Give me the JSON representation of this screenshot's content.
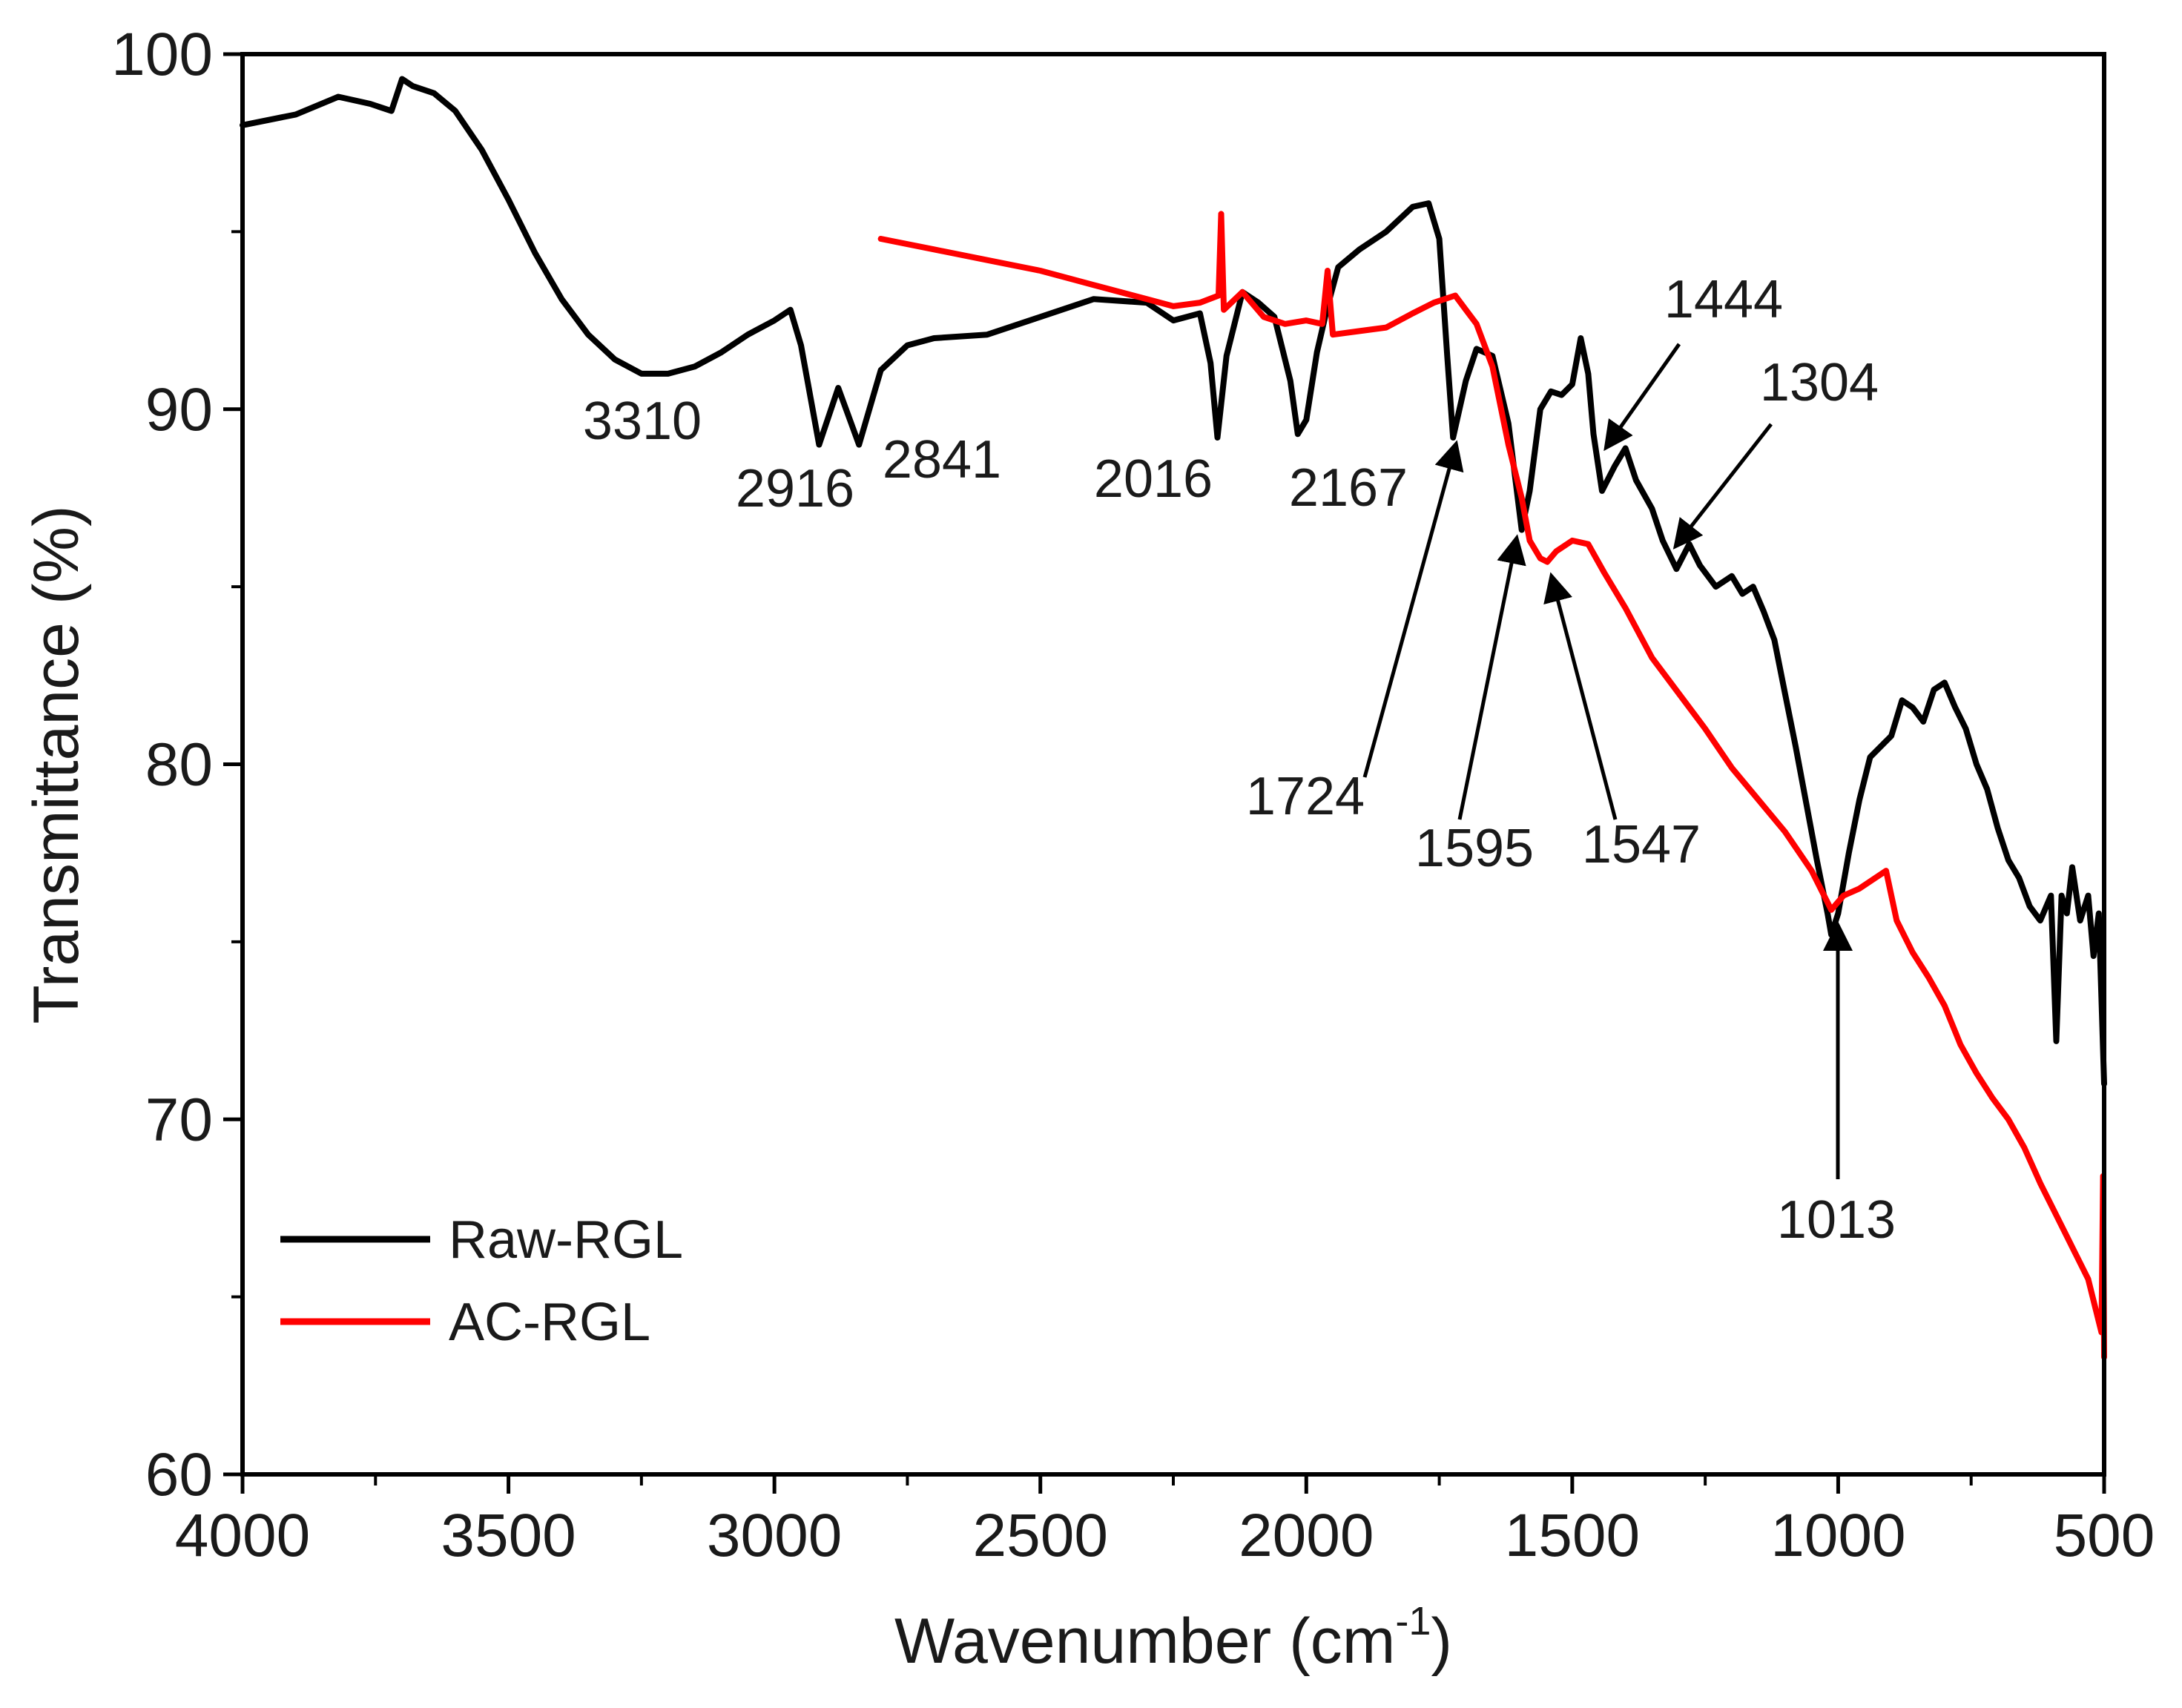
{
  "chart_data": {
    "type": "line",
    "title": "",
    "xlabel": "Wavenumber (cm",
    "xlabel_sup": "-1",
    "xlabel_close": ")",
    "ylabel": "Transmittance (%)",
    "xlim": [
      4000,
      500
    ],
    "ylim": [
      60,
      100
    ],
    "x_ticks": [
      4000,
      3500,
      3000,
      2500,
      2000,
      1500,
      1000,
      500
    ],
    "y_ticks": [
      60,
      70,
      80,
      90,
      100
    ],
    "x_tick_labels": [
      "4000",
      "3500",
      "3000",
      "2500",
      "2000",
      "1500",
      "1000",
      "500"
    ],
    "y_tick_labels": [
      "60",
      "70",
      "80",
      "90",
      "100"
    ],
    "legend_position": "bottom-left",
    "series": [
      {
        "name": "Raw-RGL",
        "color": "#000000",
        "points": [
          [
            4000,
            98.0
          ],
          [
            3900,
            98.3
          ],
          [
            3820,
            98.8
          ],
          [
            3760,
            98.6
          ],
          [
            3720,
            98.4
          ],
          [
            3700,
            99.3
          ],
          [
            3680,
            99.1
          ],
          [
            3640,
            98.9
          ],
          [
            3600,
            98.4
          ],
          [
            3550,
            97.3
          ],
          [
            3500,
            95.9
          ],
          [
            3450,
            94.4
          ],
          [
            3400,
            93.1
          ],
          [
            3350,
            92.1
          ],
          [
            3300,
            91.4
          ],
          [
            3250,
            91.0
          ],
          [
            3200,
            91.0
          ],
          [
            3150,
            91.2
          ],
          [
            3100,
            91.6
          ],
          [
            3050,
            92.1
          ],
          [
            3000,
            92.5
          ],
          [
            2970,
            92.8
          ],
          [
            2950,
            91.8
          ],
          [
            2916,
            89.0
          ],
          [
            2880,
            90.6
          ],
          [
            2841,
            89.0
          ],
          [
            2800,
            91.1
          ],
          [
            2750,
            91.8
          ],
          [
            2700,
            92.0
          ],
          [
            2600,
            92.1
          ],
          [
            2500,
            92.6
          ],
          [
            2400,
            93.1
          ],
          [
            2300,
            93.0
          ],
          [
            2250,
            92.5
          ],
          [
            2200,
            92.7
          ],
          [
            2180,
            91.3
          ],
          [
            2167,
            89.2
          ],
          [
            2150,
            91.5
          ],
          [
            2120,
            93.3
          ],
          [
            2090,
            93.0
          ],
          [
            2060,
            92.6
          ],
          [
            2030,
            90.8
          ],
          [
            2016,
            89.3
          ],
          [
            2000,
            89.7
          ],
          [
            1980,
            91.6
          ],
          [
            1960,
            92.9
          ],
          [
            1940,
            94.0
          ],
          [
            1900,
            94.5
          ],
          [
            1850,
            95.0
          ],
          [
            1800,
            95.7
          ],
          [
            1770,
            95.8
          ],
          [
            1750,
            94.8
          ],
          [
            1735,
            91.5
          ],
          [
            1724,
            89.2
          ],
          [
            1700,
            90.8
          ],
          [
            1680,
            91.7
          ],
          [
            1650,
            91.5
          ],
          [
            1620,
            89.6
          ],
          [
            1595,
            86.6
          ],
          [
            1580,
            87.7
          ],
          [
            1560,
            90.0
          ],
          [
            1540,
            90.5
          ],
          [
            1520,
            90.4
          ],
          [
            1500,
            90.7
          ],
          [
            1484,
            92.0
          ],
          [
            1470,
            91.0
          ],
          [
            1460,
            89.3
          ],
          [
            1444,
            87.7
          ],
          [
            1420,
            88.4
          ],
          [
            1400,
            88.9
          ],
          [
            1380,
            88.0
          ],
          [
            1350,
            87.2
          ],
          [
            1330,
            86.3
          ],
          [
            1304,
            85.5
          ],
          [
            1280,
            86.2
          ],
          [
            1260,
            85.6
          ],
          [
            1230,
            85.0
          ],
          [
            1200,
            85.3
          ],
          [
            1180,
            84.8
          ],
          [
            1160,
            85.0
          ],
          [
            1140,
            84.3
          ],
          [
            1120,
            83.5
          ],
          [
            1100,
            82.0
          ],
          [
            1080,
            80.5
          ],
          [
            1060,
            78.9
          ],
          [
            1040,
            77.3
          ],
          [
            1020,
            75.8
          ],
          [
            1013,
            75.2
          ],
          [
            1000,
            75.8
          ],
          [
            980,
            77.5
          ],
          [
            960,
            79.0
          ],
          [
            940,
            80.2
          ],
          [
            920,
            80.5
          ],
          [
            900,
            80.8
          ],
          [
            880,
            81.8
          ],
          [
            860,
            81.6
          ],
          [
            840,
            81.2
          ],
          [
            820,
            82.1
          ],
          [
            800,
            82.3
          ],
          [
            780,
            81.6
          ],
          [
            760,
            81.0
          ],
          [
            740,
            80.0
          ],
          [
            720,
            79.3
          ],
          [
            700,
            78.2
          ],
          [
            680,
            77.3
          ],
          [
            660,
            76.8
          ],
          [
            640,
            76.0
          ],
          [
            620,
            75.6
          ],
          [
            600,
            76.3
          ],
          [
            590,
            72.2
          ],
          [
            580,
            76.3
          ],
          [
            570,
            75.8
          ],
          [
            560,
            77.1
          ],
          [
            545,
            75.6
          ],
          [
            530,
            76.3
          ],
          [
            520,
            74.6
          ],
          [
            510,
            75.8
          ],
          [
            500,
            71.0
          ]
        ]
      },
      {
        "name": "AC-RGL",
        "color": "#ff0000",
        "points": [
          [
            2800,
            94.8
          ],
          [
            2700,
            94.5
          ],
          [
            2600,
            94.2
          ],
          [
            2500,
            93.9
          ],
          [
            2400,
            93.5
          ],
          [
            2300,
            93.1
          ],
          [
            2250,
            92.9
          ],
          [
            2200,
            93.0
          ],
          [
            2165,
            93.2
          ],
          [
            2160,
            95.5
          ],
          [
            2155,
            92.8
          ],
          [
            2120,
            93.3
          ],
          [
            2080,
            92.6
          ],
          [
            2040,
            92.4
          ],
          [
            2000,
            92.5
          ],
          [
            1970,
            92.4
          ],
          [
            1960,
            93.9
          ],
          [
            1950,
            92.1
          ],
          [
            1900,
            92.2
          ],
          [
            1850,
            92.3
          ],
          [
            1800,
            92.7
          ],
          [
            1760,
            93.0
          ],
          [
            1720,
            93.2
          ],
          [
            1700,
            92.8
          ],
          [
            1680,
            92.4
          ],
          [
            1650,
            91.2
          ],
          [
            1620,
            89.0
          ],
          [
            1595,
            87.5
          ],
          [
            1580,
            86.3
          ],
          [
            1560,
            85.8
          ],
          [
            1547,
            85.7
          ],
          [
            1530,
            86.0
          ],
          [
            1500,
            86.3
          ],
          [
            1470,
            86.2
          ],
          [
            1440,
            85.4
          ],
          [
            1400,
            84.4
          ],
          [
            1350,
            83.0
          ],
          [
            1300,
            82.0
          ],
          [
            1250,
            81.0
          ],
          [
            1200,
            79.9
          ],
          [
            1150,
            79.0
          ],
          [
            1100,
            78.1
          ],
          [
            1050,
            77.0
          ],
          [
            1013,
            75.9
          ],
          [
            990,
            76.3
          ],
          [
            960,
            76.5
          ],
          [
            930,
            76.8
          ],
          [
            910,
            77.0
          ],
          [
            890,
            75.6
          ],
          [
            860,
            74.7
          ],
          [
            830,
            74.0
          ],
          [
            800,
            73.2
          ],
          [
            770,
            72.1
          ],
          [
            740,
            71.3
          ],
          [
            710,
            70.6
          ],
          [
            680,
            70.0
          ],
          [
            650,
            69.2
          ],
          [
            620,
            68.2
          ],
          [
            590,
            67.3
          ],
          [
            560,
            66.4
          ],
          [
            530,
            65.5
          ],
          [
            505,
            64.0
          ],
          [
            502,
            68.4
          ],
          [
            500,
            63.3
          ]
        ]
      }
    ],
    "annotations": [
      {
        "text": "3310"
      },
      {
        "text": "2916"
      },
      {
        "text": "2841"
      },
      {
        "text": "2016"
      },
      {
        "text": "2167"
      },
      {
        "text": "1724"
      },
      {
        "text": "1595"
      },
      {
        "text": "1547"
      },
      {
        "text": "1444"
      },
      {
        "text": "1304"
      },
      {
        "text": "1013"
      }
    ]
  }
}
